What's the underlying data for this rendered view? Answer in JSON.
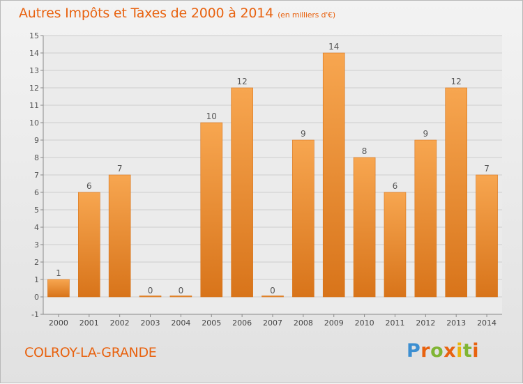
{
  "header": {
    "title": "Autres Impôts et Taxes de 2000 à 2014",
    "unit": "(en milliers d'€)"
  },
  "footer": {
    "commune": "COLROY-LA-GRANDE",
    "brand_parts": [
      "P",
      "r",
      "o",
      "x",
      "i",
      "t",
      "i"
    ]
  },
  "colors": {
    "accent": "#e8620f",
    "bar_top": "#f7a650",
    "bar_bottom": "#d8741a",
    "grid": "#cccccc"
  },
  "chart_data": {
    "type": "bar",
    "title": "Autres Impôts et Taxes de 2000 à 2014",
    "subtitle": "(en milliers d'€)",
    "categories": [
      "2000",
      "2001",
      "2002",
      "2003",
      "2004",
      "2005",
      "2006",
      "2007",
      "2008",
      "2009",
      "2010",
      "2011",
      "2012",
      "2013",
      "2014"
    ],
    "values": [
      1,
      6,
      7,
      0,
      0,
      10,
      12,
      0,
      9,
      14,
      8,
      6,
      9,
      12,
      7
    ],
    "ylim": [
      -1,
      15
    ],
    "yticks": [
      -1,
      0,
      1,
      2,
      3,
      4,
      5,
      6,
      7,
      8,
      9,
      10,
      11,
      12,
      13,
      14,
      15
    ],
    "grid": true,
    "legend": "none",
    "xlabel": "",
    "ylabel": ""
  }
}
